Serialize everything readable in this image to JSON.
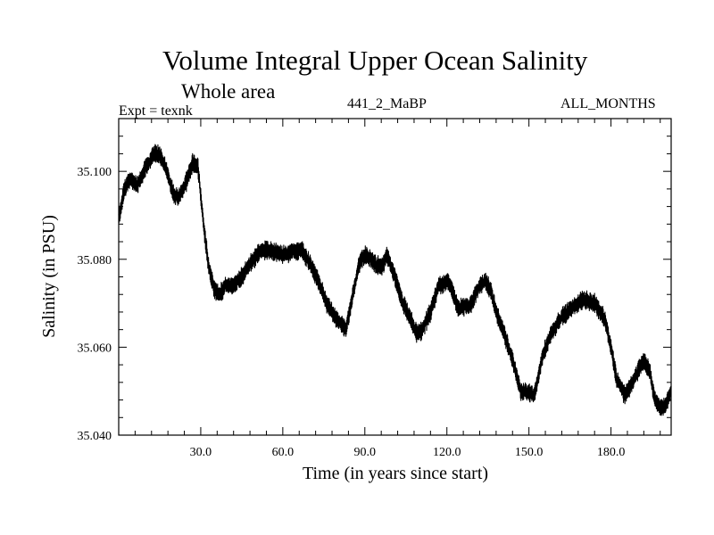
{
  "chart_data": {
    "type": "line",
    "title": "Volume Integral Upper Ocean Salinity",
    "subtitle": "Whole area",
    "annotations": {
      "left": "Expt = texnk",
      "center": "441_2_MaBP",
      "right": "ALL_MONTHS"
    },
    "xlabel": "Time (in years since start)",
    "ylabel": "Salinity (in PSU)",
    "xlim": [
      0,
      202
    ],
    "ylim": [
      35.04,
      35.112
    ],
    "xticks": [
      30,
      60,
      90,
      120,
      150,
      180
    ],
    "xtick_labels": [
      "30.0",
      "60.0",
      "90.0",
      "120.0",
      "150.0",
      "180.0"
    ],
    "yticks": [
      35.04,
      35.06,
      35.08,
      35.1
    ],
    "ytick_labels": [
      "35.040",
      "35.060",
      "35.080",
      "35.100"
    ],
    "grid": false,
    "series": [
      {
        "name": "Salinity",
        "envelope_half_width": 0.0018,
        "x": [
          0,
          2,
          4,
          7,
          10,
          13,
          15,
          17,
          20,
          22,
          25,
          27,
          29,
          31,
          33,
          35,
          37,
          39,
          42,
          45,
          48,
          52,
          56,
          60,
          64,
          67,
          70,
          73,
          76,
          80,
          83,
          85,
          88,
          90,
          92,
          94,
          96,
          98,
          101,
          104,
          107,
          109,
          111,
          114,
          117,
          120,
          122,
          124,
          126,
          129,
          132,
          134,
          136,
          138,
          141,
          144,
          147,
          149,
          152,
          155,
          158,
          162,
          166,
          170,
          174,
          176,
          178,
          180,
          182,
          185,
          188,
          190,
          192,
          194,
          196,
          198,
          200,
          202
        ],
        "y": [
          35.089,
          35.096,
          35.098,
          35.097,
          35.101,
          35.104,
          35.104,
          35.101,
          35.095,
          35.094,
          35.098,
          35.102,
          35.101,
          35.088,
          35.078,
          35.073,
          35.072,
          35.074,
          35.074,
          35.076,
          35.079,
          35.082,
          35.082,
          35.081,
          35.082,
          35.082,
          35.079,
          35.075,
          35.07,
          35.066,
          35.064,
          35.07,
          35.079,
          35.081,
          35.08,
          35.079,
          35.078,
          35.081,
          35.076,
          35.07,
          35.066,
          35.063,
          35.064,
          35.068,
          35.074,
          35.075,
          35.073,
          35.069,
          35.069,
          35.07,
          35.074,
          35.075,
          35.073,
          35.068,
          35.063,
          35.057,
          35.05,
          35.05,
          35.049,
          35.058,
          35.063,
          35.067,
          35.069,
          35.071,
          35.07,
          35.068,
          35.066,
          35.06,
          35.053,
          35.049,
          35.052,
          35.055,
          35.057,
          35.055,
          35.048,
          35.046,
          35.047,
          35.05
        ]
      }
    ]
  }
}
